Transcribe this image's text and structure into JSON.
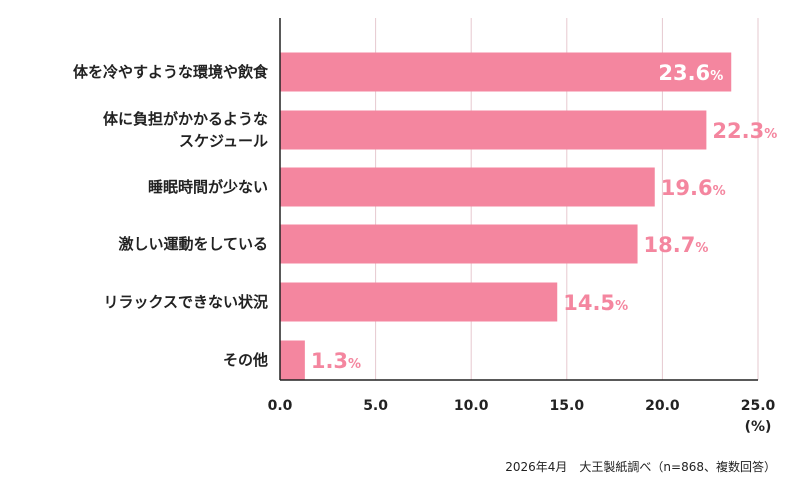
{
  "chart_data": {
    "type": "bar",
    "orientation": "horizontal",
    "categories": [
      [
        "体を冷やすような環境や飲食"
      ],
      [
        "体に負担がかかるような",
        "スケジュール"
      ],
      [
        "睡眠時間が少ない"
      ],
      [
        "激しい運動をしている"
      ],
      [
        "リラックスできない状況"
      ],
      [
        "その他"
      ]
    ],
    "values": [
      23.6,
      22.3,
      19.6,
      18.7,
      14.5,
      1.3
    ],
    "value_labels": [
      "23.6",
      "22.3",
      "19.6",
      "18.7",
      "14.5",
      "1.3"
    ],
    "value_suffix": "%",
    "xlim": [
      0,
      25
    ],
    "xticks": [
      "0.0",
      "5.0",
      "10.0",
      "15.0",
      "20.0",
      "25.0"
    ],
    "x_unit": "(%)",
    "grid": true,
    "colors": {
      "bar": "#f4869f",
      "label_inside": "#ffffff",
      "label_outside": "#f4869f",
      "grid": "#e6c9cf",
      "axis": "#222222"
    }
  },
  "source": "2026年4月　大王製紙調べ（n=868、複数回答）"
}
